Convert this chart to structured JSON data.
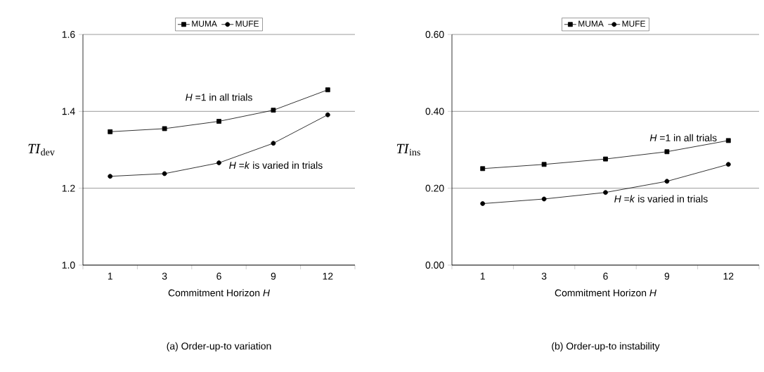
{
  "chart_data": [
    {
      "type": "line",
      "xlabel": "Commitment Horizon *H*",
      "ylabel": "*TI*$_{dev}$",
      "categories": [
        "1",
        "3",
        "6",
        "9",
        "12"
      ],
      "series": [
        {
          "name": "MUMA",
          "color": "#000000",
          "marker": "square",
          "values": [
            1.347,
            1.355,
            1.374,
            1.403,
            1.456
          ]
        },
        {
          "name": "MUFE",
          "color": "#000000",
          "marker": "circle",
          "values": [
            1.231,
            1.238,
            1.266,
            1.317,
            1.391
          ]
        }
      ],
      "ylim": [
        1.0,
        1.6
      ],
      "yticks": [
        {
          "value": 1.0,
          "label": "1.0"
        },
        {
          "value": 1.2,
          "label": "1.2"
        },
        {
          "value": 1.4,
          "label": "1.4"
        },
        {
          "value": 1.6,
          "label": "1.6"
        }
      ],
      "grid": "y",
      "legend": "top",
      "line_style": "solid",
      "annotations": [
        {
          "text": "*H* =1 in all trials",
          "x": "6",
          "y": 1.374
        },
        {
          "text": "*H* =*k* is varied in trials",
          "x": "6",
          "y": 1.266
        },
        "(a)  Order-up-to variation"
      ]
    },
    {
      "type": "line",
      "xlabel": "Commitment Horizon *H*",
      "ylabel": "*TI*$_{ins}$",
      "categories": [
        "1",
        "3",
        "6",
        "9",
        "12"
      ],
      "series": [
        {
          "name": "MUMA",
          "color": "#000000",
          "marker": "square",
          "values": [
            0.251,
            0.262,
            0.276,
            0.295,
            0.324
          ]
        },
        {
          "name": "MUFE",
          "color": "#000000",
          "marker": "circle",
          "values": [
            0.16,
            0.172,
            0.189,
            0.218,
            0.262
          ]
        }
      ],
      "ylim": [
        0.0,
        0.6
      ],
      "yticks": [
        {
          "value": 0.0,
          "label": "0.00"
        },
        {
          "value": 0.2,
          "label": "0.20"
        },
        {
          "value": 0.4,
          "label": "0.40"
        },
        {
          "value": 0.6,
          "label": "0.60"
        }
      ],
      "grid": "y",
      "legend": "top",
      "line_style": "solid",
      "annotations": [
        {
          "text": "*H* =1 in all trials",
          "x": "12",
          "y": 0.324
        },
        {
          "text": "*H* =*k* is varied in trials",
          "x": "6",
          "y": 0.189
        },
        "(b)  Order-up-to instability"
      ]
    }
  ]
}
